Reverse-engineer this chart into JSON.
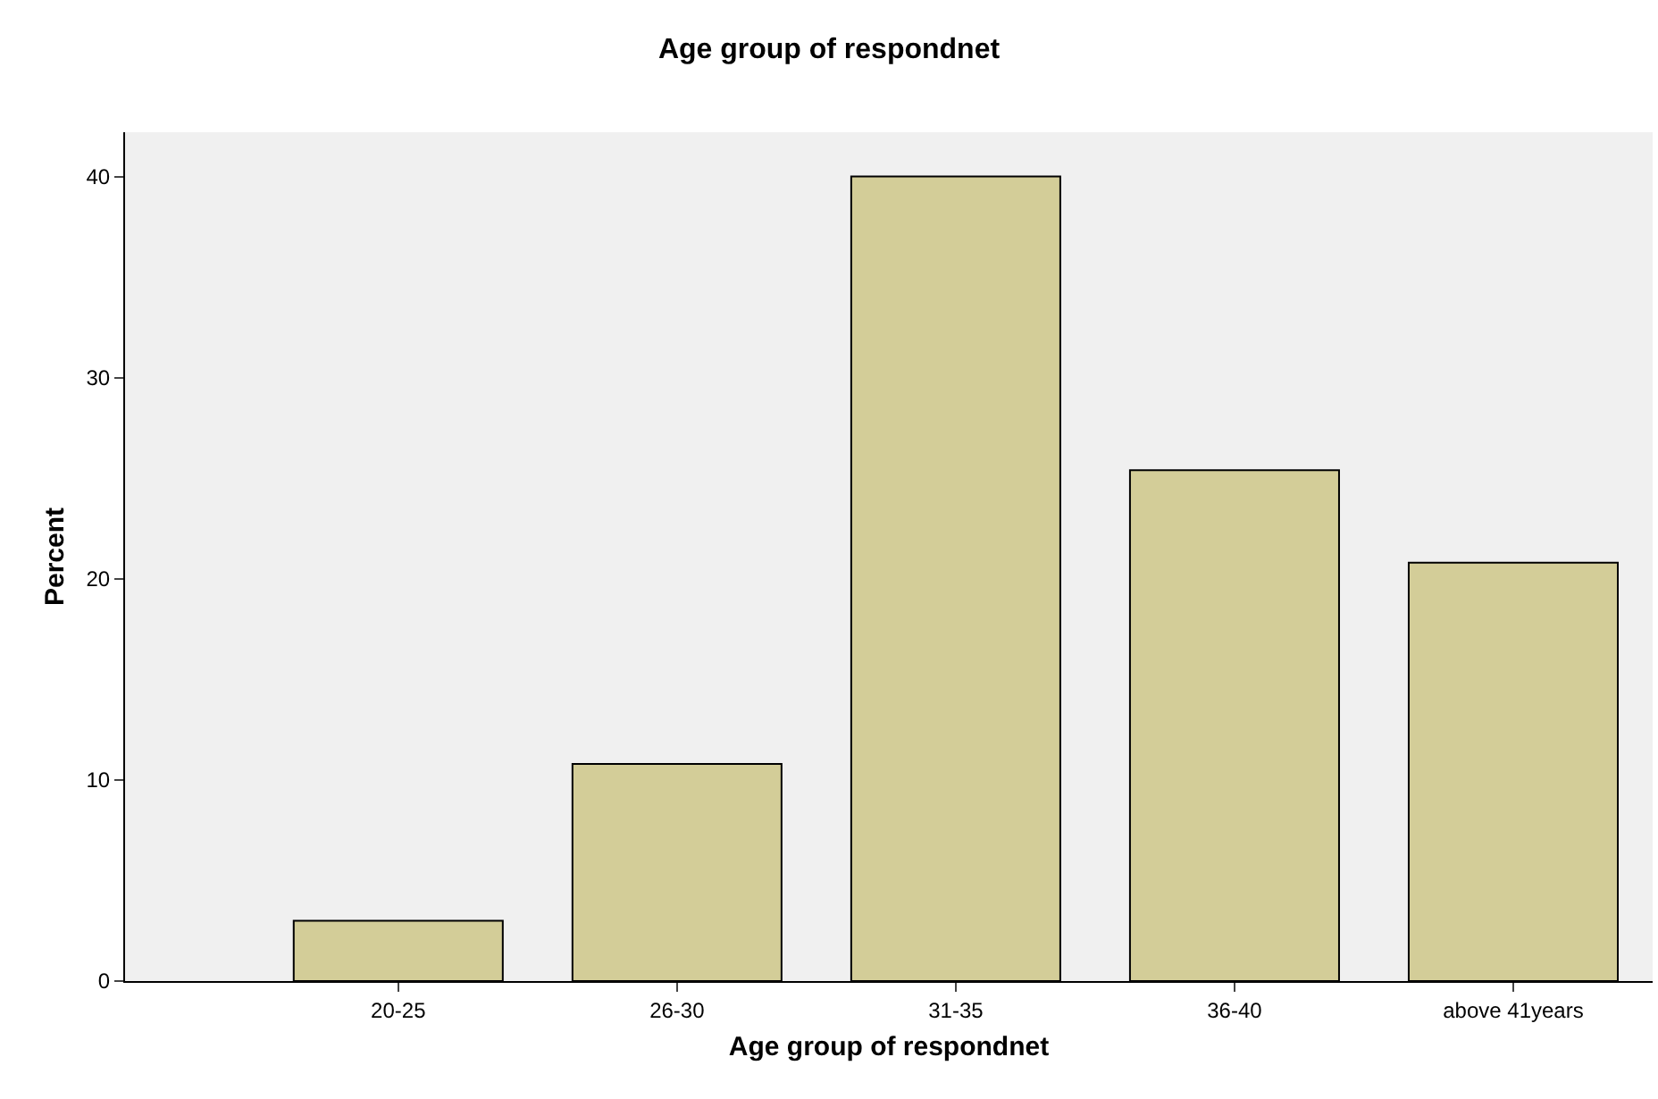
{
  "chart_data": {
    "type": "bar",
    "title": "Age group of respondnet",
    "xlabel": "Age group of respondnet",
    "ylabel": "Percent",
    "categories": [
      "20-25",
      "26-30",
      "31-35",
      "36-40",
      "above 41years"
    ],
    "values": [
      3.0,
      10.8,
      40.0,
      25.4,
      20.8
    ],
    "color": "#d3cd98",
    "ylim": [
      0,
      42.2
    ],
    "yticks": [
      0,
      10,
      20,
      30,
      40
    ],
    "grid": false,
    "legend": false
  }
}
